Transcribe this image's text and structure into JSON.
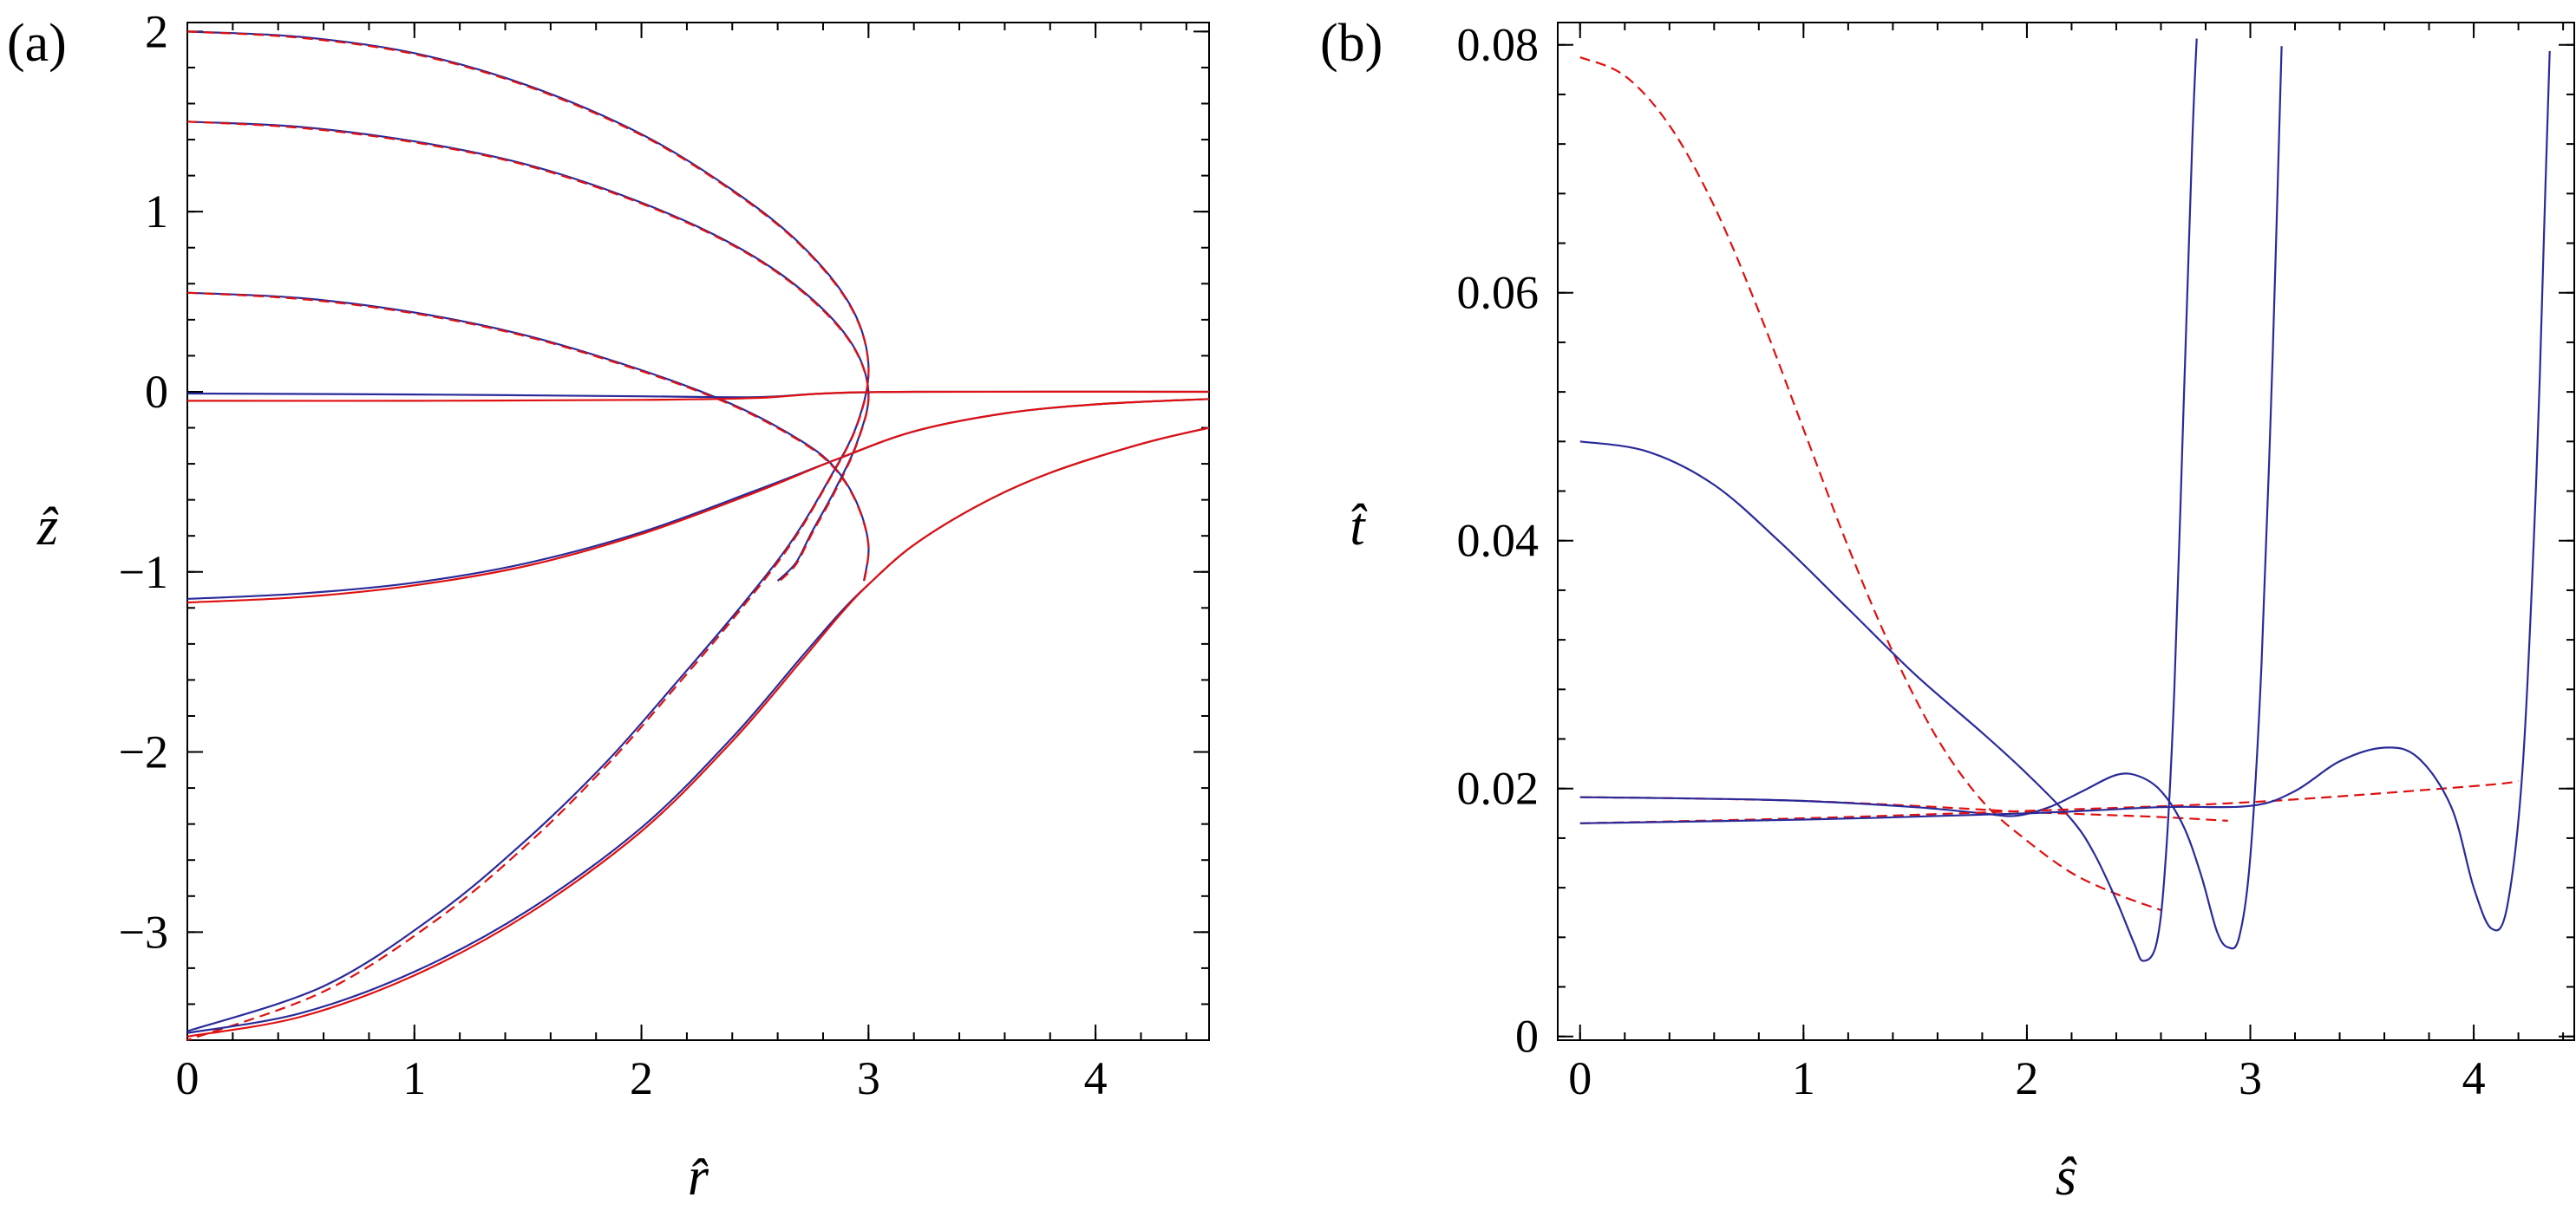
{
  "chart_data": [
    {
      "type": "line",
      "panel_label": "(a)",
      "xlabel": "r̂",
      "ylabel": "ẑ",
      "xlim": [
        0,
        4.5
      ],
      "ylim": [
        -3.6,
        2.05
      ],
      "xticks": [
        0,
        1,
        2,
        3,
        4
      ],
      "yticks": [
        -3,
        -2,
        -1,
        0,
        1,
        2
      ],
      "tick_labels_x": [
        "0",
        "1",
        "2",
        "3",
        "4"
      ],
      "tick_labels_y": [
        "−3",
        "−2",
        "−1",
        "0",
        "1",
        "2"
      ],
      "grid": false,
      "series": [
        {
          "style": "solid",
          "color": "#2a2a9a",
          "points": [
            [
              0,
              2.0
            ],
            [
              0.5,
              1.97
            ],
            [
              1.0,
              1.88
            ],
            [
              1.5,
              1.7
            ],
            [
              2.0,
              1.43
            ],
            [
              2.4,
              1.12
            ],
            [
              2.7,
              0.82
            ],
            [
              2.92,
              0.48
            ],
            [
              3.0,
              0.15
            ],
            [
              2.95,
              -0.18
            ],
            [
              2.82,
              -0.5
            ],
            [
              2.65,
              -0.85
            ],
            [
              2.42,
              -1.22
            ],
            [
              2.15,
              -1.62
            ],
            [
              1.85,
              -2.05
            ],
            [
              1.5,
              -2.48
            ],
            [
              1.1,
              -2.9
            ],
            [
              0.6,
              -3.3
            ],
            [
              0.0,
              -3.55
            ]
          ]
        },
        {
          "style": "dashed",
          "color": "#e01010",
          "points": [
            [
              0,
              2.0
            ],
            [
              0.5,
              1.965
            ],
            [
              1.0,
              1.875
            ],
            [
              1.5,
              1.695
            ],
            [
              2.0,
              1.425
            ],
            [
              2.4,
              1.115
            ],
            [
              2.7,
              0.815
            ],
            [
              2.92,
              0.475
            ],
            [
              3.0,
              0.145
            ],
            [
              2.95,
              -0.185
            ],
            [
              2.82,
              -0.505
            ],
            [
              2.65,
              -0.86
            ],
            [
              2.42,
              -1.235
            ],
            [
              2.15,
              -1.64
            ],
            [
              1.85,
              -2.07
            ],
            [
              1.5,
              -2.51
            ],
            [
              1.1,
              -2.93
            ],
            [
              0.6,
              -3.33
            ],
            [
              0.0,
              -3.6
            ]
          ]
        },
        {
          "style": "solid",
          "color": "#2a2a9a",
          "points": [
            [
              0,
              1.5
            ],
            [
              0.5,
              1.47
            ],
            [
              1.0,
              1.39
            ],
            [
              1.5,
              1.26
            ],
            [
              2.0,
              1.05
            ],
            [
              2.4,
              0.82
            ],
            [
              2.7,
              0.57
            ],
            [
              2.92,
              0.28
            ],
            [
              3.0,
              0.0
            ],
            [
              2.95,
              -0.28
            ],
            [
              2.85,
              -0.55
            ],
            [
              2.75,
              -0.78
            ],
            [
              2.68,
              -0.95
            ],
            [
              2.6,
              -1.05
            ]
          ]
        },
        {
          "style": "dashed",
          "color": "#e01010",
          "points": [
            [
              0,
              1.5
            ],
            [
              0.5,
              1.465
            ],
            [
              1.0,
              1.385
            ],
            [
              1.5,
              1.255
            ],
            [
              2.0,
              1.045
            ],
            [
              2.4,
              0.815
            ],
            [
              2.7,
              0.565
            ],
            [
              2.92,
              0.275
            ],
            [
              3.0,
              -0.005
            ],
            [
              2.95,
              -0.285
            ],
            [
              2.85,
              -0.56
            ],
            [
              2.75,
              -0.79
            ],
            [
              2.68,
              -0.96
            ],
            [
              2.6,
              -1.06
            ]
          ]
        },
        {
          "style": "solid",
          "color": "#2a2a9a",
          "points": [
            [
              0,
              0.55
            ],
            [
              0.5,
              0.52
            ],
            [
              1.0,
              0.44
            ],
            [
              1.5,
              0.31
            ],
            [
              2.0,
              0.12
            ],
            [
              2.4,
              -0.07
            ],
            [
              2.7,
              -0.27
            ],
            [
              2.85,
              -0.42
            ],
            [
              2.95,
              -0.62
            ],
            [
              3.0,
              -0.85
            ],
            [
              2.98,
              -1.05
            ]
          ]
        },
        {
          "style": "dashed",
          "color": "#e01010",
          "points": [
            [
              0,
              0.55
            ],
            [
              0.5,
              0.515
            ],
            [
              1.0,
              0.435
            ],
            [
              1.5,
              0.305
            ],
            [
              2.0,
              0.115
            ],
            [
              2.4,
              -0.075
            ],
            [
              2.7,
              -0.275
            ],
            [
              2.85,
              -0.425
            ],
            [
              2.95,
              -0.625
            ],
            [
              3.0,
              -0.855
            ],
            [
              2.98,
              -1.06
            ]
          ]
        },
        {
          "style": "solid",
          "color": "#2a2a9a",
          "points": [
            [
              0,
              -0.01
            ],
            [
              1.0,
              -0.015
            ],
            [
              2.0,
              -0.025
            ],
            [
              2.5,
              -0.03
            ],
            [
              2.8,
              -0.01
            ],
            [
              3.2,
              0.0
            ],
            [
              4.5,
              0.0
            ]
          ]
        },
        {
          "style": "solid",
          "color": "#e01010",
          "points": [
            [
              0,
              -0.05
            ],
            [
              1.0,
              -0.05
            ],
            [
              2.0,
              -0.045
            ],
            [
              2.5,
              -0.035
            ],
            [
              2.8,
              -0.01
            ],
            [
              3.2,
              0.0
            ],
            [
              4.5,
              0.0
            ]
          ]
        },
        {
          "style": "solid",
          "color": "#2a2a9a",
          "points": [
            [
              0,
              -1.15
            ],
            [
              0.5,
              -1.12
            ],
            [
              1.0,
              -1.06
            ],
            [
              1.5,
              -0.95
            ],
            [
              2.0,
              -0.78
            ],
            [
              2.5,
              -0.55
            ],
            [
              2.85,
              -0.38
            ],
            [
              3.2,
              -0.22
            ],
            [
              3.6,
              -0.12
            ],
            [
              4.0,
              -0.07
            ],
            [
              4.5,
              -0.04
            ]
          ]
        },
        {
          "style": "solid",
          "color": "#e01010",
          "points": [
            [
              0,
              -1.17
            ],
            [
              0.5,
              -1.14
            ],
            [
              1.0,
              -1.075
            ],
            [
              1.5,
              -0.965
            ],
            [
              2.0,
              -0.79
            ],
            [
              2.5,
              -0.56
            ],
            [
              2.85,
              -0.38
            ],
            [
              3.2,
              -0.22
            ],
            [
              3.6,
              -0.12
            ],
            [
              4.0,
              -0.07
            ],
            [
              4.5,
              -0.04
            ]
          ]
        },
        {
          "style": "solid",
          "color": "#2a2a9a",
          "points": [
            [
              0,
              -3.56
            ],
            [
              0.5,
              -3.45
            ],
            [
              1.0,
              -3.22
            ],
            [
              1.5,
              -2.88
            ],
            [
              2.0,
              -2.42
            ],
            [
              2.4,
              -1.92
            ],
            [
              2.7,
              -1.48
            ],
            [
              2.88,
              -1.22
            ],
            [
              3.0,
              -1.07
            ],
            [
              3.2,
              -0.85
            ],
            [
              3.5,
              -0.62
            ],
            [
              3.8,
              -0.45
            ],
            [
              4.2,
              -0.29
            ],
            [
              4.5,
              -0.2
            ]
          ]
        },
        {
          "style": "solid",
          "color": "#e01010",
          "points": [
            [
              0,
              -3.58
            ],
            [
              0.5,
              -3.47
            ],
            [
              1.0,
              -3.24
            ],
            [
              1.5,
              -2.9
            ],
            [
              2.0,
              -2.44
            ],
            [
              2.4,
              -1.94
            ],
            [
              2.7,
              -1.5
            ],
            [
              2.88,
              -1.23
            ],
            [
              3.0,
              -1.07
            ],
            [
              3.2,
              -0.85
            ],
            [
              3.5,
              -0.62
            ],
            [
              3.8,
              -0.45
            ],
            [
              4.2,
              -0.29
            ],
            [
              4.5,
              -0.2
            ]
          ]
        }
      ]
    },
    {
      "type": "line",
      "panel_label": "(b)",
      "xlabel": "ŝ",
      "ylabel": "t̂",
      "xlim": [
        -0.1,
        4.45
      ],
      "ylim": [
        -0.0003,
        0.0818
      ],
      "xticks": [
        0,
        1,
        2,
        3,
        4
      ],
      "yticks": [
        0,
        0.02,
        0.04,
        0.06,
        0.08
      ],
      "tick_labels_x": [
        "0",
        "1",
        "2",
        "3",
        "4"
      ],
      "tick_labels_y": [
        "0",
        "0.02",
        "0.04",
        "0.06",
        "0.08"
      ],
      "grid": false,
      "series": [
        {
          "style": "dashed",
          "color": "#e01010",
          "points": [
            [
              0,
              0.079
            ],
            [
              0.2,
              0.0775
            ],
            [
              0.4,
              0.0735
            ],
            [
              0.6,
              0.067
            ],
            [
              0.8,
              0.0585
            ],
            [
              1.0,
              0.049
            ],
            [
              1.2,
              0.0395
            ],
            [
              1.4,
              0.031
            ],
            [
              1.6,
              0.024
            ],
            [
              1.8,
              0.019
            ],
            [
              2.0,
              0.0158
            ],
            [
              2.2,
              0.0132
            ],
            [
              2.4,
              0.0115
            ],
            [
              2.6,
              0.0102
            ]
          ]
        },
        {
          "style": "solid",
          "color": "#2a2a9a",
          "points": [
            [
              0,
              0.048
            ],
            [
              0.3,
              0.0472
            ],
            [
              0.6,
              0.0445
            ],
            [
              0.9,
              0.0398
            ],
            [
              1.2,
              0.0345
            ],
            [
              1.5,
              0.0292
            ],
            [
              1.8,
              0.0245
            ],
            [
              2.0,
              0.0212
            ],
            [
              2.2,
              0.0175
            ],
            [
              2.3,
              0.0148
            ],
            [
              2.4,
              0.011
            ],
            [
              2.48,
              0.0075
            ],
            [
              2.52,
              0.0061
            ],
            [
              2.58,
              0.0075
            ],
            [
              2.62,
              0.014
            ],
            [
              2.66,
              0.028
            ],
            [
              2.7,
              0.05
            ],
            [
              2.74,
              0.072
            ],
            [
              2.76,
              0.0805
            ]
          ]
        },
        {
          "style": "dashed",
          "color": "#e01010",
          "points": [
            [
              0,
              0.0193
            ],
            [
              0.5,
              0.0192
            ],
            [
              1.0,
              0.019
            ],
            [
              1.5,
              0.0186
            ],
            [
              1.8,
              0.0183
            ],
            [
              2.0,
              0.0181
            ],
            [
              2.3,
              0.0179
            ],
            [
              2.6,
              0.0177
            ],
            [
              2.9,
              0.0174
            ]
          ]
        },
        {
          "style": "solid",
          "color": "#2a2a9a",
          "points": [
            [
              0,
              0.0193
            ],
            [
              0.5,
              0.0192
            ],
            [
              1.0,
              0.019
            ],
            [
              1.5,
              0.0185
            ],
            [
              1.8,
              0.018
            ],
            [
              1.95,
              0.0178
            ],
            [
              2.1,
              0.0185
            ],
            [
              2.25,
              0.0198
            ],
            [
              2.4,
              0.0211
            ],
            [
              2.5,
              0.021
            ],
            [
              2.6,
              0.0198
            ],
            [
              2.7,
              0.017
            ],
            [
              2.78,
              0.013
            ],
            [
              2.85,
              0.0085
            ],
            [
              2.9,
              0.0072
            ],
            [
              2.95,
              0.008
            ],
            [
              3.0,
              0.0145
            ],
            [
              3.05,
              0.03
            ],
            [
              3.1,
              0.055
            ],
            [
              3.14,
              0.0799
            ]
          ]
        },
        {
          "style": "dashed",
          "color": "#e01010",
          "points": [
            [
              0,
              0.0172
            ],
            [
              1.0,
              0.0176
            ],
            [
              2.0,
              0.0182
            ],
            [
              3.0,
              0.0189
            ],
            [
              4.0,
              0.0202
            ],
            [
              4.2,
              0.0206
            ]
          ]
        },
        {
          "style": "solid",
          "color": "#2a2a9a",
          "points": [
            [
              0,
              0.0172
            ],
            [
              1.0,
              0.0175
            ],
            [
              2.0,
              0.018
            ],
            [
              2.6,
              0.0185
            ],
            [
              3.0,
              0.0186
            ],
            [
              3.2,
              0.0198
            ],
            [
              3.4,
              0.0222
            ],
            [
              3.6,
              0.0233
            ],
            [
              3.75,
              0.0225
            ],
            [
              3.9,
              0.0185
            ],
            [
              4.0,
              0.012
            ],
            [
              4.08,
              0.0087
            ],
            [
              4.15,
              0.0105
            ],
            [
              4.22,
              0.022
            ],
            [
              4.28,
              0.045
            ],
            [
              4.32,
              0.068
            ],
            [
              4.34,
              0.0795
            ]
          ]
        }
      ]
    }
  ]
}
